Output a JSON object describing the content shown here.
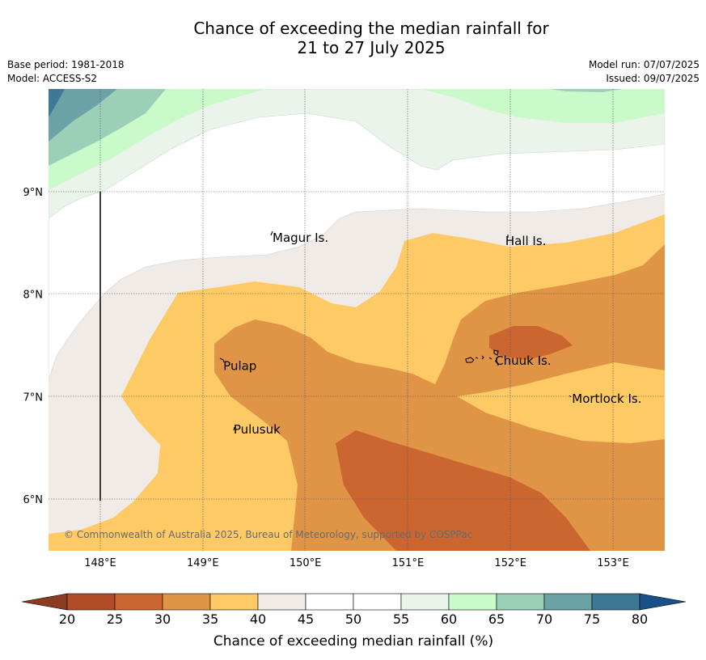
{
  "header": {
    "title_line1": "Chance of exceeding the median rainfall for",
    "title_line2": "21 to 27 July 2025",
    "base_period": "Base period: 1981-2018",
    "model": "Model: ACCESS-S2",
    "model_run": "Model run: 07/07/2025",
    "issued": "Issued: 09/07/2025"
  },
  "map": {
    "x_ticks": [
      "148°E",
      "149°E",
      "150°E",
      "151°E",
      "152°E",
      "153°E"
    ],
    "y_ticks": [
      "9°N",
      "8°N",
      "7°N",
      "6°N"
    ],
    "places": [
      {
        "name": "Magur Is.",
        "lon": 149.68,
        "lat": 8.55
      },
      {
        "name": "Hall Is.",
        "lon": 151.95,
        "lat": 8.52
      },
      {
        "name": "Pulap",
        "lon": 149.2,
        "lat": 7.3
      },
      {
        "name": "Chuuk Is.",
        "lon": 151.85,
        "lat": 7.35
      },
      {
        "name": "Mortlock Is.",
        "lon": 152.6,
        "lat": 6.98
      },
      {
        "name": "Pulusuk",
        "lon": 149.3,
        "lat": 6.68
      }
    ],
    "copyright": "© Commonwealth of Australia 2025, Bureau of Meteorology, supported by COSPPac"
  },
  "colorbar": {
    "ticks": [
      "20",
      "25",
      "30",
      "35",
      "40",
      "45",
      "50",
      "55",
      "60",
      "65",
      "70",
      "75",
      "80"
    ],
    "colors": [
      "#b04d28",
      "#cc6630",
      "#e09445",
      "#fdca66",
      "#f0ebe6",
      "#ffffff",
      "#ffffff",
      "#eaf4ea",
      "#caf9ca",
      "#9ccfb8",
      "#6aa2a6",
      "#3f7895"
    ],
    "under_color": "#8c3a20",
    "over_color": "#1a5088",
    "label": "Chance of exceeding median rainfall (%)"
  }
}
